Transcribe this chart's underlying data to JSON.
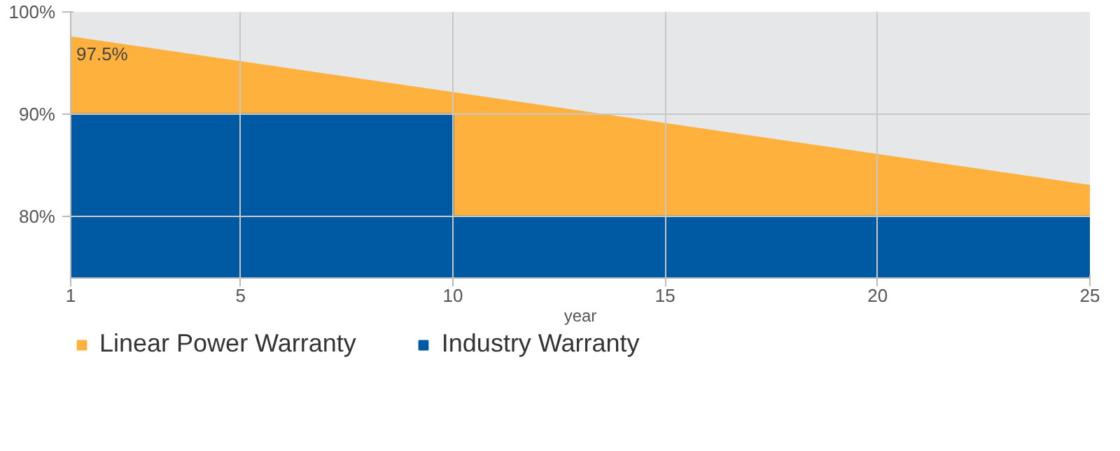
{
  "chart_data": {
    "type": "area",
    "x": [
      1,
      25
    ],
    "xlim": [
      1,
      25
    ],
    "ylim": [
      74,
      100
    ],
    "xlabel": "year",
    "xticks": [
      1,
      5,
      10,
      15,
      20,
      25
    ],
    "yticks": [
      {
        "value": 80,
        "label": "80%"
      },
      {
        "value": 90,
        "label": "90%"
      },
      {
        "value": 100,
        "label": "100%"
      }
    ],
    "series": [
      {
        "name": "Linear Power Warranty",
        "color": "#ffb13d",
        "values": [
          97.5,
          83
        ]
      },
      {
        "name": "Industry Warranty",
        "color": "#0059a3",
        "x": [
          1,
          10,
          10,
          25
        ],
        "values": [
          90,
          90,
          80,
          80
        ]
      }
    ],
    "annotations": [
      {
        "text": "97.5%",
        "x": 1,
        "y": 97.5
      }
    ],
    "grid": true,
    "legend": "bottom"
  }
}
